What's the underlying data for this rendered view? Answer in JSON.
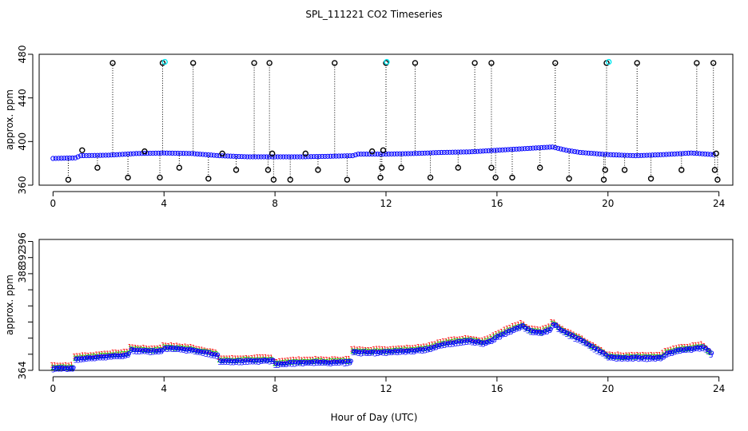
{
  "figure": {
    "title": "SPL_111221  CO2 Timeseries",
    "xlabel": "Hour of Day (UTC)"
  },
  "chart_data": [
    {
      "type": "scatter",
      "title": "SPL_111221  CO2 Timeseries",
      "xlabel": "",
      "ylabel": "approx. ppm",
      "xlim": [
        -0.5,
        24.5
      ],
      "ylim": [
        360,
        480
      ],
      "xticks": [
        "0",
        "4",
        "8",
        "12",
        "16",
        "20",
        "24"
      ],
      "yticks": [
        "360",
        "400",
        "440",
        "480"
      ],
      "xtick_values": [
        0,
        4,
        8,
        12,
        16,
        20,
        24
      ],
      "ytick_values": [
        360,
        400,
        440,
        480
      ],
      "baseline_points": [
        [
          0.0,
          384.5
        ],
        [
          0.8,
          385.0
        ],
        [
          1.0,
          387.0
        ],
        [
          2.0,
          387.5
        ],
        [
          3.0,
          389.0
        ],
        [
          4.0,
          389.5
        ],
        [
          5.0,
          389.0
        ],
        [
          6.0,
          387.0
        ],
        [
          7.0,
          386.0
        ],
        [
          8.0,
          386.0
        ],
        [
          9.0,
          386.0
        ],
        [
          10.0,
          386.5
        ],
        [
          10.8,
          387.0
        ],
        [
          11.0,
          388.5
        ],
        [
          12.0,
          388.5
        ],
        [
          13.0,
          389.0
        ],
        [
          14.0,
          390.0
        ],
        [
          15.0,
          390.5
        ],
        [
          16.0,
          392.0
        ],
        [
          17.0,
          393.5
        ],
        [
          18.0,
          395.0
        ],
        [
          18.5,
          392.0
        ],
        [
          19.0,
          390.0
        ],
        [
          20.0,
          388.0
        ],
        [
          21.0,
          387.0
        ],
        [
          22.0,
          388.0
        ],
        [
          23.0,
          389.5
        ],
        [
          23.8,
          388.0
        ]
      ],
      "high_outliers_x": [
        2.15,
        3.95,
        5.05,
        7.25,
        7.8,
        10.15,
        12.0,
        13.05,
        15.2,
        15.8,
        18.1,
        19.95,
        21.05,
        23.2,
        23.8
      ],
      "high_outlier_value": 472,
      "cyan_markers_x": [
        4.0,
        12.0,
        20.0
      ],
      "low_outliers": [
        [
          0.55,
          365
        ],
        [
          1.6,
          376
        ],
        [
          2.7,
          367
        ],
        [
          3.85,
          367
        ],
        [
          4.55,
          376
        ],
        [
          5.6,
          366
        ],
        [
          6.6,
          374
        ],
        [
          7.75,
          374
        ],
        [
          7.95,
          365
        ],
        [
          8.55,
          365
        ],
        [
          9.55,
          374
        ],
        [
          10.6,
          365
        ],
        [
          11.8,
          367
        ],
        [
          11.85,
          376
        ],
        [
          12.55,
          376
        ],
        [
          13.6,
          367
        ],
        [
          14.6,
          376
        ],
        [
          15.8,
          376
        ],
        [
          15.95,
          367
        ],
        [
          16.55,
          367
        ],
        [
          17.55,
          376
        ],
        [
          18.6,
          366
        ],
        [
          19.85,
          365
        ],
        [
          19.9,
          374
        ],
        [
          20.6,
          374
        ],
        [
          21.55,
          366
        ],
        [
          22.65,
          374
        ],
        [
          23.85,
          374
        ],
        [
          23.95,
          365
        ]
      ],
      "mid_markers": [
        [
          1.05,
          392
        ],
        [
          3.3,
          391
        ],
        [
          6.1,
          389
        ],
        [
          7.9,
          389
        ],
        [
          9.1,
          389
        ],
        [
          11.5,
          391
        ],
        [
          11.9,
          392
        ],
        [
          23.9,
          389
        ]
      ],
      "series_colors": {
        "outliers": "#000000",
        "baseline": "#0000ff",
        "cyan": "#00e5ee",
        "spikes": "#000000"
      }
    },
    {
      "type": "scatter",
      "title": "",
      "xlabel": "Hour of Day (UTC)",
      "ylabel": "approx. ppm",
      "xlim": [
        -0.5,
        24.5
      ],
      "ylim": [
        364,
        396.5
      ],
      "xticks": [
        "0",
        "4",
        "8",
        "12",
        "16",
        "20",
        "24"
      ],
      "yticks": [
        "364",
        "388",
        "392",
        "396"
      ],
      "xtick_values": [
        0,
        4,
        8,
        12,
        16,
        20,
        24
      ],
      "ytick_values": [
        364,
        388,
        392,
        396
      ],
      "mean_curve": [
        [
          0.0,
          364.8
        ],
        [
          0.75,
          364.8
        ],
        [
          0.78,
          367.0
        ],
        [
          1.0,
          367.2
        ],
        [
          1.5,
          367.4
        ],
        [
          2.0,
          367.8
        ],
        [
          2.5,
          368.0
        ],
        [
          2.75,
          368.3
        ],
        [
          2.8,
          369.4
        ],
        [
          3.0,
          369.2
        ],
        [
          3.5,
          369.0
        ],
        [
          3.95,
          369.1
        ],
        [
          4.0,
          369.8
        ],
        [
          4.5,
          369.6
        ],
        [
          5.0,
          369.3
        ],
        [
          5.5,
          368.6
        ],
        [
          5.9,
          368.0
        ],
        [
          6.0,
          366.6
        ],
        [
          6.5,
          366.5
        ],
        [
          7.0,
          366.6
        ],
        [
          7.5,
          366.7
        ],
        [
          7.95,
          366.7
        ],
        [
          8.0,
          365.7
        ],
        [
          8.5,
          366.1
        ],
        [
          9.0,
          366.2
        ],
        [
          9.5,
          366.3
        ],
        [
          10.0,
          366.2
        ],
        [
          10.5,
          366.3
        ],
        [
          10.75,
          366.4
        ],
        [
          10.8,
          368.8
        ],
        [
          11.5,
          368.7
        ],
        [
          11.95,
          368.9
        ],
        [
          12.0,
          368.8
        ],
        [
          13.0,
          369.2
        ],
        [
          13.5,
          369.6
        ],
        [
          14.0,
          370.6
        ],
        [
          14.5,
          371.2
        ],
        [
          15.0,
          371.6
        ],
        [
          15.5,
          371.0
        ],
        [
          15.8,
          371.8
        ],
        [
          16.0,
          372.6
        ],
        [
          16.5,
          374.2
        ],
        [
          16.9,
          375.2
        ],
        [
          17.2,
          374.0
        ],
        [
          17.6,
          373.6
        ],
        [
          17.9,
          374.4
        ],
        [
          18.05,
          376.2
        ],
        [
          18.15,
          374.8
        ],
        [
          18.5,
          373.4
        ],
        [
          19.0,
          371.8
        ],
        [
          19.5,
          369.7
        ],
        [
          19.8,
          368.6
        ],
        [
          20.0,
          367.6
        ],
        [
          20.5,
          367.3
        ],
        [
          21.0,
          367.4
        ],
        [
          21.5,
          367.3
        ],
        [
          21.95,
          367.5
        ],
        [
          22.1,
          368.4
        ],
        [
          22.5,
          369.2
        ],
        [
          23.0,
          369.6
        ],
        [
          23.45,
          370.0
        ],
        [
          23.7,
          368.4
        ]
      ],
      "series": [
        {
          "name": "marker-1",
          "glyph": "1",
          "color": "#ff0000",
          "offset": 0.55
        },
        {
          "name": "marker-2",
          "glyph": "2",
          "color": "#00cd00",
          "offset": 0.05
        },
        {
          "name": "marker-3",
          "glyph": "3",
          "color": "#0000ff",
          "offset": -0.45
        },
        {
          "name": "marker-4",
          "glyph": "o",
          "color": "#0000ff",
          "offset": -0.15
        }
      ]
    }
  ]
}
